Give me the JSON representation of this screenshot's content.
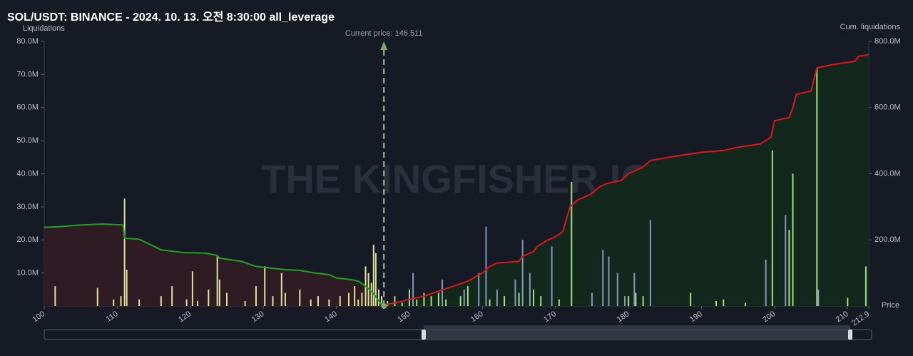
{
  "chart_data": {
    "type": "liquidation",
    "title": "SOL/USDT: BINANCE - 2024. 10. 13. 오전 8:30:00 all_leverage",
    "y_label": "Liquidations",
    "y2_label": "Cum. liquidations",
    "x_label": "Price",
    "watermark": "THE KINGFISHER.IO",
    "current_price": {
      "value": 146.511,
      "label": "Current price: 146.511",
      "color": "#7fa878"
    },
    "xlim": [
      100,
      212.9
    ],
    "xticks": [
      100,
      110,
      120,
      130,
      140,
      150,
      160,
      170,
      180,
      190,
      200,
      210,
      212.9
    ],
    "ylim": [
      0,
      80
    ],
    "yticks": [
      {
        "value": 10,
        "label": "10.0M"
      },
      {
        "value": 20,
        "label": "20.0M"
      },
      {
        "value": 30,
        "label": "30.0M"
      },
      {
        "value": 40,
        "label": "40.0M"
      },
      {
        "value": 50,
        "label": "50.0M"
      },
      {
        "value": 60,
        "label": "60.0M"
      },
      {
        "value": 70,
        "label": "70.0M"
      },
      {
        "value": 80,
        "label": "80.0M"
      }
    ],
    "y2lim": [
      0,
      800
    ],
    "y2ticks": [
      {
        "value": 200,
        "label": "200.0M"
      },
      {
        "value": 400,
        "label": "400.0M"
      },
      {
        "value": 600,
        "label": "600.0M"
      },
      {
        "value": 800,
        "label": "800.0M"
      }
    ],
    "series": [
      {
        "type": "line",
        "axis": "y2",
        "color": "#1fa31f",
        "fill": "#2f1b24",
        "x": [
          146.5,
          146,
          145.5,
          145,
          144,
          143,
          142,
          140,
          139,
          137,
          135,
          133,
          131,
          129,
          127,
          124,
          123.7,
          122,
          119,
          116,
          113,
          111,
          110.8,
          108,
          105,
          102,
          100
        ],
        "values": [
          0,
          10,
          25,
          40,
          60,
          75,
          80,
          85,
          95,
          100,
          108,
          110,
          115,
          120,
          135,
          145,
          153,
          160,
          162,
          170,
          202,
          205,
          245,
          248,
          245,
          240,
          238
        ]
      },
      {
        "type": "line",
        "axis": "y2",
        "color": "#e3131b",
        "fill": "#13281d",
        "x": [
          146.5,
          147,
          148,
          150,
          152,
          154,
          156,
          158,
          160,
          161,
          162,
          165,
          165.5,
          167,
          167.5,
          169,
          170,
          171,
          172,
          173,
          175,
          176,
          177,
          179,
          180,
          182,
          183,
          187,
          190,
          193,
          195,
          198,
          199.5,
          200,
          202,
          202.5,
          203,
          205,
          205.8,
          208,
          211,
          211.5,
          212.9
        ],
        "values": [
          0,
          5,
          10,
          20,
          30,
          45,
          60,
          75,
          100,
          120,
          130,
          135,
          150,
          165,
          180,
          200,
          210,
          225,
          300,
          320,
          340,
          360,
          370,
          380,
          400,
          420,
          440,
          455,
          465,
          470,
          480,
          490,
          510,
          560,
          570,
          600,
          640,
          650,
          720,
          730,
          740,
          755,
          760
        ]
      },
      {
        "type": "bar",
        "color": "#dfe49a",
        "x": [
          101.5,
          107.3,
          109.5,
          110.5,
          111,
          111.3,
          113,
          116,
          117.5,
          119.5,
          120.3,
          121,
          122.5,
          123.7,
          124,
          125,
          127.5,
          129,
          130.2,
          131.3,
          132.5,
          133,
          135,
          136.5,
          137.5,
          139,
          140.5,
          141.7,
          142.5,
          143,
          143.5,
          144,
          144.4,
          144.8,
          145.1,
          145.4,
          145.8,
          146.2
        ],
        "values": [
          6,
          5.5,
          2,
          3,
          32.5,
          11,
          2,
          3,
          6,
          2,
          10.5,
          1.5,
          5,
          15,
          8,
          4,
          1.5,
          6,
          12,
          3,
          10,
          4,
          5,
          2,
          3,
          2,
          3,
          4,
          6,
          2,
          4,
          12,
          10,
          7,
          18.5,
          16,
          5,
          3
        ]
      },
      {
        "type": "bar",
        "color": "#a3e07a",
        "x": [
          147,
          148,
          149,
          150,
          151,
          152,
          153,
          154,
          155,
          157,
          158,
          161,
          163,
          165,
          167,
          168,
          170.5,
          172.2,
          180,
          181,
          182,
          188.5,
          192,
          193,
          196,
          199.7,
          202,
          202.5,
          205.8,
          210,
          212.5
        ],
        "values": [
          1.5,
          3,
          1,
          5,
          2,
          4,
          3,
          4,
          2,
          3,
          6,
          2,
          3,
          4,
          5,
          3,
          2,
          37.5,
          3,
          4,
          3,
          4,
          1.5,
          2,
          1,
          47,
          23,
          40,
          72,
          2.5,
          12
        ]
      },
      {
        "type": "bar",
        "color": "#8497c0",
        "x": [
          150.5,
          154.5,
          157.5,
          159.5,
          160.5,
          162,
          164.5,
          165.5,
          166.5,
          169.5,
          175,
          176.5,
          177.3,
          178.5,
          179.5,
          180.8,
          183,
          198.8,
          201.5,
          206
        ],
        "values": [
          10,
          8,
          5,
          10,
          24,
          5,
          8,
          20,
          10,
          18,
          4,
          17,
          15,
          10,
          3,
          10,
          26,
          14,
          27.5,
          5
        ]
      }
    ]
  }
}
